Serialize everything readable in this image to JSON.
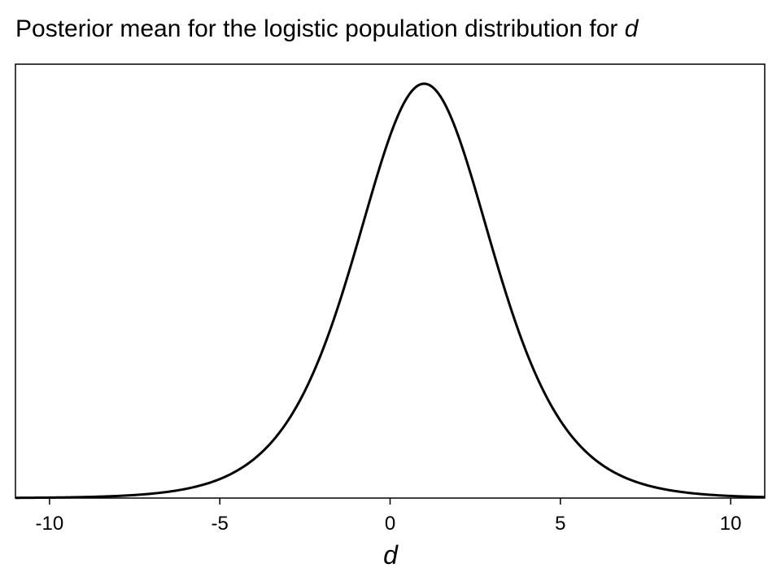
{
  "chart_data": {
    "type": "line",
    "title": "Posterior mean for the logistic population distribution for ",
    "title_var": "d",
    "xlabel": "d",
    "ylabel": "",
    "xlim": [
      -11,
      11
    ],
    "x_ticks": [
      -10,
      -5,
      0,
      5,
      10
    ],
    "x_tick_labels": [
      "-10",
      "-5",
      "0",
      "5",
      "10"
    ],
    "y_ticks_shown": false,
    "grid": false,
    "distribution": "logistic",
    "location": 1.0,
    "scale": 1.35,
    "series": [
      {
        "x": [
          -11,
          -10,
          -9,
          -8,
          -7,
          -6,
          -5,
          -4,
          -3,
          -2,
          -1,
          0,
          1,
          2,
          3,
          4,
          5,
          6,
          7,
          8,
          9,
          10,
          11
        ],
        "y": [
          0.0001,
          0.0004,
          0.0009,
          0.002,
          0.0047,
          0.0109,
          0.0243,
          0.0519,
          0.1009,
          0.1707,
          0.2399,
          0.2869,
          0.3023,
          0.2869,
          0.2399,
          0.1707,
          0.1009,
          0.0519,
          0.0243,
          0.0109,
          0.0047,
          0.002,
          0.0009
        ],
        "color": "#000000"
      }
    ]
  }
}
